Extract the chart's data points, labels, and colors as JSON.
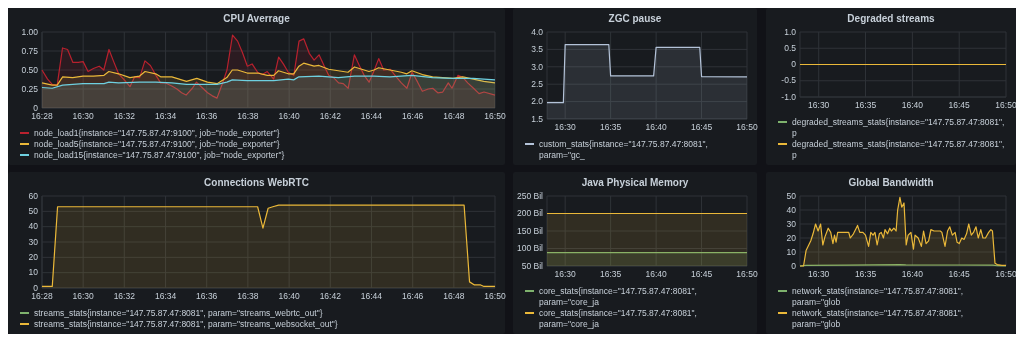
{
  "chart_data": [
    {
      "type": "area",
      "title": "CPU Averrage",
      "xlim": [
        16.4667,
        16.8333
      ],
      "ylim": [
        0,
        1
      ],
      "xticks": [
        {
          "value": 16.4667,
          "label": "16:28"
        },
        {
          "value": 16.5,
          "label": "16:30"
        },
        {
          "value": 16.5333,
          "label": "16:32"
        },
        {
          "value": 16.5667,
          "label": "16:34"
        },
        {
          "value": 16.6,
          "label": "16:36"
        },
        {
          "value": 16.6333,
          "label": "16:38"
        },
        {
          "value": 16.6667,
          "label": "16:40"
        },
        {
          "value": 16.7,
          "label": "16:42"
        },
        {
          "value": 16.7333,
          "label": "16:44"
        },
        {
          "value": 16.7667,
          "label": "16:46"
        },
        {
          "value": 16.8,
          "label": "16:48"
        },
        {
          "value": 16.8333,
          "label": "16:50"
        }
      ],
      "yticks": [
        0,
        {
          "value": 0.25,
          "label": "0.25"
        },
        {
          "value": 0.5,
          "label": "0.50"
        },
        {
          "value": 0.75,
          "label": "0.75"
        },
        {
          "value": 1,
          "label": "1.00"
        }
      ],
      "grid": true,
      "legend": "bottom",
      "series": [
        {
          "name": "node_load1{instance=\"147.75.87.47:9100\", job=\"node_exporter\"}",
          "color": "#b8212e",
          "x": [
            16.4667,
            16.4712,
            16.475,
            16.479,
            16.4833,
            16.4874,
            16.4917,
            16.496,
            16.5,
            16.504,
            16.5083,
            16.513,
            16.5167,
            16.5209,
            16.5247,
            16.5287,
            16.5333,
            16.5379,
            16.5417,
            16.5457,
            16.55,
            16.5544,
            16.5589,
            16.5627,
            16.5667,
            16.5717,
            16.5759,
            16.5797,
            16.5833,
            16.5884,
            16.5917,
            16.5962,
            16.6007,
            16.6045,
            16.6083,
            16.6124,
            16.6164,
            16.6209,
            16.625,
            16.6289,
            16.6329,
            16.6367,
            16.6412,
            16.645,
            16.649,
            16.6542,
            16.6582,
            16.662,
            16.666,
            16.6705,
            16.6747,
            16.6785,
            16.683,
            16.6869,
            16.6909,
            16.6949,
            16.6987,
            16.7027,
            16.7067,
            16.7105,
            16.7145,
            16.7195,
            16.7235,
            16.7274,
            16.7314,
            16.7354,
            16.7392,
            16.7432,
            16.7484,
            16.7524,
            16.7575,
            16.762,
            16.7662,
            16.7707,
            16.7745,
            16.7792,
            16.7829,
            16.787,
            16.791,
            16.7955,
            16.7985,
            16.8034,
            16.8074,
            16.8112,
            16.8159,
            16.8204,
            16.8244,
            16.8333
          ],
          "values": [
            0.5,
            0.38,
            0.31,
            0.3,
            0.79,
            0.77,
            0.6,
            0.6,
            0.61,
            0.48,
            0.52,
            0.55,
            0.5,
            0.77,
            0.61,
            0.45,
            0.37,
            0.28,
            0.41,
            0.4,
            0.62,
            0.56,
            0.43,
            0.33,
            0.33,
            0.29,
            0.25,
            0.2,
            0.17,
            0.26,
            0.34,
            0.27,
            0.2,
            0.16,
            0.13,
            0.31,
            0.5,
            0.96,
            0.88,
            0.73,
            0.55,
            0.58,
            0.47,
            0.44,
            0.48,
            0.38,
            0.67,
            0.58,
            0.47,
            0.43,
            0.88,
            0.91,
            0.72,
            0.63,
            0.7,
            0.56,
            0.43,
            0.4,
            0.33,
            0.32,
            0.26,
            0.7,
            0.56,
            0.43,
            0.34,
            0.49,
            0.65,
            0.5,
            0.51,
            0.43,
            0.33,
            0.26,
            0.47,
            0.34,
            0.22,
            0.25,
            0.26,
            0.2,
            0.21,
            0.33,
            0.26,
            0.43,
            0.4,
            0.33,
            0.26,
            0.19,
            0.21,
            0.17
          ]
        },
        {
          "name": "node_load5{instance=\"147.75.87.47:9100\", job=\"node_exporter\"}",
          "color": "#eab839",
          "x": [
            16.4667,
            16.475,
            16.479,
            16.4834,
            16.4915,
            16.4999,
            16.5083,
            16.5169,
            16.5208,
            16.5287,
            16.5378,
            16.5457,
            16.5501,
            16.5587,
            16.5627,
            16.5718,
            16.5836,
            16.592,
            16.6006,
            16.6084,
            16.6163,
            16.6207,
            16.6249,
            16.6328,
            16.6411,
            16.649,
            16.6542,
            16.6581,
            16.666,
            16.6704,
            16.6746,
            16.6785,
            16.6869,
            16.6908,
            16.6987,
            16.7065,
            16.7143,
            16.7196,
            16.7274,
            16.7313,
            16.7353,
            16.7392,
            16.7483,
            16.7575,
            16.7619,
            16.7661,
            16.7745,
            16.7828,
            16.791,
            16.7993,
            16.8072,
            16.8158,
            16.8242,
            16.8333
          ],
          "values": [
            0.33,
            0.3,
            0.3,
            0.41,
            0.4,
            0.42,
            0.42,
            0.43,
            0.48,
            0.45,
            0.4,
            0.42,
            0.48,
            0.45,
            0.41,
            0.41,
            0.35,
            0.39,
            0.34,
            0.32,
            0.4,
            0.5,
            0.5,
            0.46,
            0.46,
            0.43,
            0.43,
            0.49,
            0.45,
            0.45,
            0.55,
            0.59,
            0.55,
            0.56,
            0.51,
            0.49,
            0.47,
            0.54,
            0.5,
            0.48,
            0.5,
            0.53,
            0.5,
            0.47,
            0.45,
            0.49,
            0.44,
            0.41,
            0.4,
            0.39,
            0.41,
            0.38,
            0.35,
            0.33
          ]
        },
        {
          "name": "node_load15{instance=\"147.75.87.47:9100\", job=\"node_exporter\"}",
          "color": "#6ed0e0",
          "x": [
            16.4667,
            16.475,
            16.4834,
            16.4999,
            16.5169,
            16.5208,
            16.5287,
            16.5457,
            16.5587,
            16.5718,
            16.5836,
            16.6006,
            16.6084,
            16.6163,
            16.6207,
            16.6328,
            16.6542,
            16.666,
            16.6704,
            16.6746,
            16.6908,
            16.7065,
            16.7196,
            16.7353,
            16.7483,
            16.7661,
            16.7828,
            16.7993,
            16.8158,
            16.8242,
            16.8333
          ],
          "values": [
            0.27,
            0.26,
            0.3,
            0.32,
            0.32,
            0.34,
            0.33,
            0.34,
            0.34,
            0.33,
            0.31,
            0.31,
            0.31,
            0.34,
            0.37,
            0.36,
            0.36,
            0.38,
            0.37,
            0.41,
            0.42,
            0.4,
            0.42,
            0.42,
            0.41,
            0.43,
            0.4,
            0.39,
            0.39,
            0.38,
            0.37
          ]
        }
      ]
    },
    {
      "type": "area",
      "title": "ZGC pause",
      "xlim": [
        16.4667,
        16.8333
      ],
      "ylim": [
        1.5,
        4
      ],
      "xticks": [
        {
          "value": 16.5,
          "label": "16:30"
        },
        {
          "value": 16.5833,
          "label": "16:35"
        },
        {
          "value": 16.6667,
          "label": "16:40"
        },
        {
          "value": 16.75,
          "label": "16:45"
        },
        {
          "value": 16.8333,
          "label": "16:50"
        }
      ],
      "yticks": [
        1.5,
        {
          "value": 2,
          "label": "2.0"
        },
        2.5,
        {
          "value": 3,
          "label": "3.0"
        },
        3.5,
        {
          "value": 4,
          "label": "4.0"
        }
      ],
      "grid": true,
      "legend": "bottom",
      "series": [
        {
          "name": "custom_stats{instance=\"147.75.87.47:8081\", param=\"gc_",
          "color": "#b4c3d9",
          "x": [
            16.4667,
            16.4967,
            16.5,
            16.58,
            16.5833,
            16.6622,
            16.6667,
            16.7467,
            16.75,
            16.8333
          ],
          "values": [
            1.97,
            1.97,
            3.64,
            3.64,
            2.74,
            2.74,
            3.56,
            3.56,
            2.72,
            2.71
          ]
        }
      ]
    },
    {
      "type": "line",
      "title": "Degraded streams",
      "xlim": [
        16.4667,
        16.8333
      ],
      "ylim": [
        -1,
        1
      ],
      "xticks": [
        {
          "value": 16.5,
          "label": "16:30"
        },
        {
          "value": 16.5833,
          "label": "16:35"
        },
        {
          "value": 16.6667,
          "label": "16:40"
        },
        {
          "value": 16.75,
          "label": "16:45"
        },
        {
          "value": 16.8333,
          "label": "16:50"
        }
      ],
      "yticks": [
        {
          "value": -1,
          "label": "-1.0"
        },
        -0.5,
        0,
        0.5,
        {
          "value": 1,
          "label": "1.0"
        }
      ],
      "grid": true,
      "legend": "bottom",
      "series": [
        {
          "name": "degraded_streams_stats{instance=\"147.75.87.47:8081\", p",
          "color": "#7eb26d"
        },
        {
          "name": "degraded_streams_stats{instance=\"147.75.87.47:8081\", p",
          "color": "#eab839",
          "x": [
            16.4667,
            16.8333
          ],
          "values": [
            0,
            0
          ]
        }
      ]
    },
    {
      "type": "area",
      "title": "Connections WebRTC",
      "xlim": [
        16.4667,
        16.8333
      ],
      "ylim": [
        0,
        60
      ],
      "xticks": [
        {
          "value": 16.4667,
          "label": "16:28"
        },
        {
          "value": 16.5,
          "label": "16:30"
        },
        {
          "value": 16.5333,
          "label": "16:32"
        },
        {
          "value": 16.5667,
          "label": "16:34"
        },
        {
          "value": 16.6,
          "label": "16:36"
        },
        {
          "value": 16.6333,
          "label": "16:38"
        },
        {
          "value": 16.6667,
          "label": "16:40"
        },
        {
          "value": 16.7,
          "label": "16:42"
        },
        {
          "value": 16.7333,
          "label": "16:44"
        },
        {
          "value": 16.7667,
          "label": "16:46"
        },
        {
          "value": 16.8,
          "label": "16:48"
        },
        {
          "value": 16.8333,
          "label": "16:50"
        }
      ],
      "yticks": [
        0,
        10,
        20,
        30,
        40,
        50,
        60
      ],
      "grid": true,
      "legend": "bottom",
      "series": [
        {
          "name": "streams_stats{instance=\"147.75.87.47:8081\", param=\"streams_webrtc_out\"}",
          "color": "#7eb26d"
        },
        {
          "name": "streams_stats{instance=\"147.75.87.47:8081\", param=\"streams_websocket_out\"}",
          "color": "#eab839",
          "x": [
            16.4667,
            16.475,
            16.4793,
            16.6412,
            16.6455,
            16.6497,
            16.6535,
            16.6582,
            16.8083,
            16.8127,
            16.8167,
            16.8217,
            16.8244,
            16.8333
          ],
          "values": [
            1,
            1,
            53,
            53,
            39,
            52,
            53,
            54,
            54,
            4,
            2,
            2,
            1,
            1
          ]
        }
      ]
    },
    {
      "type": "area",
      "title": "Java Physical Memory",
      "xlim": [
        16.4667,
        16.8333
      ],
      "ylim": [
        50,
        250
      ],
      "xticks": [
        {
          "value": 16.5,
          "label": "16:30"
        },
        {
          "value": 16.5833,
          "label": "16:35"
        },
        {
          "value": 16.6667,
          "label": "16:40"
        },
        {
          "value": 16.75,
          "label": "16:45"
        },
        {
          "value": 16.8333,
          "label": "16:50"
        }
      ],
      "yticks": [
        {
          "value": 50,
          "label": "50 Bil"
        },
        {
          "value": 100,
          "label": "100 Bil"
        },
        {
          "value": 150,
          "label": "150 Bil"
        },
        {
          "value": 200,
          "label": "200 Bil"
        },
        {
          "value": 250,
          "label": "250 Bil"
        }
      ],
      "grid": true,
      "legend": "bottom",
      "series": [
        {
          "name": "core_stats{instance=\"147.75.87.47:8081\", param=\"core_ja",
          "color": "#7eb26d",
          "x": [
            16.4667,
            16.8333
          ],
          "values": [
            88,
            88
          ]
        },
        {
          "name": "core_stats{instance=\"147.75.87.47:8081\", param=\"core_ja",
          "color": "#eab839",
          "x": [
            16.4667,
            16.8333
          ],
          "values": [
            200,
            200
          ]
        }
      ]
    },
    {
      "type": "area",
      "title": "Global Bandwidth",
      "xlim": [
        16.4667,
        16.8333
      ],
      "ylim": [
        0,
        50
      ],
      "xticks": [
        {
          "value": 16.5,
          "label": "16:30"
        },
        {
          "value": 16.5833,
          "label": "16:35"
        },
        {
          "value": 16.6667,
          "label": "16:40"
        },
        {
          "value": 16.75,
          "label": "16:45"
        },
        {
          "value": 16.8333,
          "label": "16:50"
        }
      ],
      "yticks": [
        0,
        10,
        20,
        30,
        40,
        50
      ],
      "grid": true,
      "legend": "bottom",
      "series": [
        {
          "name": "network_stats{instance=\"147.75.87.47:8081\", param=\"glob",
          "color": "#7eb26d",
          "x": [
            16.4667,
            16.4775,
            16.55,
            16.645,
            16.655,
            16.75,
            16.81,
            16.8176,
            16.8333
          ],
          "values": [
            0,
            0.5,
            0.6,
            1,
            0.8,
            0.7,
            0.6,
            0.2,
            0.1
          ]
        },
        {
          "name": "network_stats{instance=\"147.75.87.47:8081\", param=\"glob",
          "color": "#eab839",
          "x": [
            16.4667,
            16.473,
            16.4775,
            16.4859,
            16.4899,
            16.4944,
            16.4989,
            16.5034,
            16.5073,
            16.5112,
            16.5169,
            16.5214,
            16.5253,
            16.5281,
            16.5309,
            16.5337,
            16.5365,
            16.545,
            16.5495,
            16.5534,
            16.5562,
            16.5618,
            16.5691,
            16.5731,
            16.5787,
            16.5832,
            16.5888,
            16.5927,
            16.5967,
            16.6001,
            16.604,
            16.6079,
            16.6113,
            16.6152,
            16.618,
            16.6225,
            16.6265,
            16.6293,
            16.6338,
            16.6377,
            16.6405,
            16.6445,
            16.6478,
            16.6518,
            16.6557,
            16.6591,
            16.6641,
            16.6686,
            16.6714,
            16.6771,
            16.6827,
            16.6866,
            16.6911,
            16.6956,
            16.6996,
            16.7052,
            16.7164,
            16.7192,
            16.7248,
            16.7293,
            16.7333,
            16.7378,
            16.7428,
            16.7462,
            16.7501,
            16.7546,
            16.7586,
            16.7631,
            16.767,
            16.7715,
            16.7754,
            16.7799,
            16.7839,
            16.7884,
            16.7923,
            16.7968,
            16.8024,
            16.8064,
            16.8092,
            16.8137,
            16.8176,
            16.826,
            16.8333
          ],
          "values": [
            0,
            0,
            11,
            18,
            23,
            30,
            25,
            30,
            15,
            21,
            27,
            24,
            16,
            22,
            17,
            24,
            24,
            24,
            24,
            24,
            20,
            23,
            29,
            24,
            24,
            22,
            14,
            24,
            22,
            24,
            15,
            23,
            24,
            20,
            26,
            23,
            27,
            25,
            27,
            25,
            40,
            49,
            42,
            45,
            15,
            22,
            24,
            12,
            22,
            20,
            14,
            25,
            16,
            18,
            26,
            25,
            25,
            24,
            14,
            25,
            28,
            22,
            24,
            17,
            16,
            20,
            19,
            23,
            30,
            22,
            24,
            28,
            20,
            26,
            20,
            20,
            24,
            26,
            25,
            2,
            1,
            0.5,
            0.5
          ]
        }
      ]
    }
  ]
}
